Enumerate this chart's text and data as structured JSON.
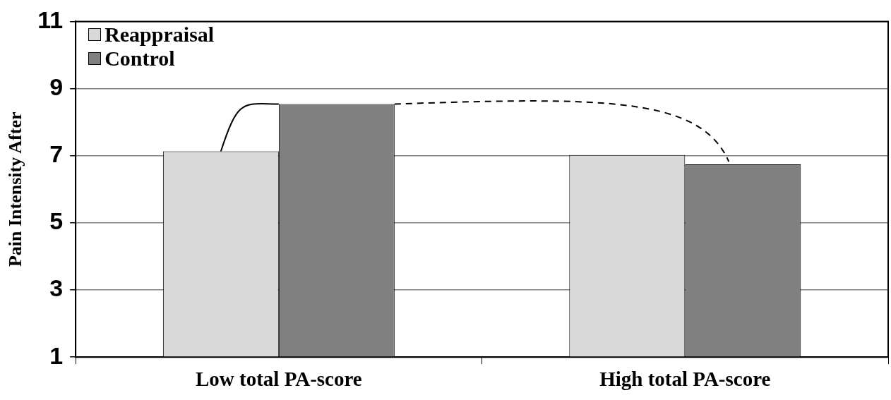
{
  "chart_data": {
    "type": "bar",
    "ylabel": "Pain Intensity After",
    "categories": [
      "Low total PA-score",
      "High total PA-score"
    ],
    "series": [
      {
        "name": "Reappraisal",
        "color": "#d9d9d9",
        "values": [
          7.13,
          7.02
        ]
      },
      {
        "name": "Control",
        "color": "#808080",
        "values": [
          8.54,
          6.74
        ]
      }
    ],
    "ylim": [
      1,
      11
    ],
    "yticks": [
      1,
      3,
      5,
      7,
      9,
      11
    ],
    "grid": "y",
    "legend": "top left"
  }
}
